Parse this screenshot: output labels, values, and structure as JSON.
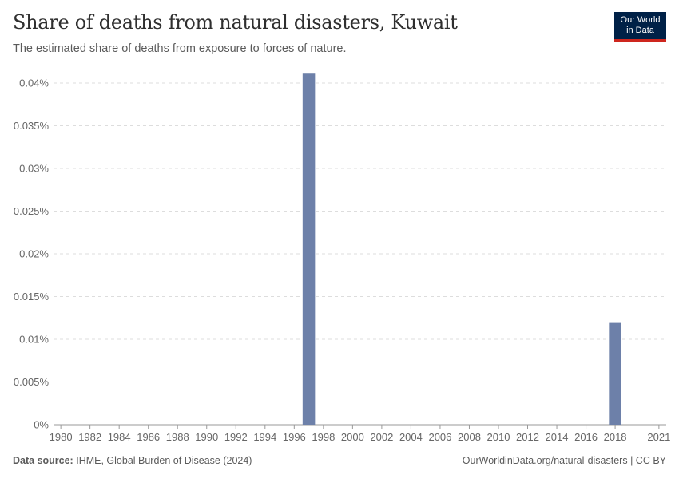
{
  "header": {
    "title": "Share of deaths from natural disasters, Kuwait",
    "subtitle": "The estimated share of deaths from exposure to forces of nature."
  },
  "logo": {
    "line1": "Our World",
    "line2": "in Data"
  },
  "footer": {
    "source_label": "Data source:",
    "source_text": "IHME, Global Burden of Disease (2024)",
    "right_text": "OurWorldinData.org/natural-disasters | CC BY"
  },
  "colors": {
    "bar": "#6d80a9",
    "grid": "#dddddd",
    "axis": "#999999",
    "logo_bg": "#002147",
    "logo_accent": "#ce261e"
  },
  "chart_data": {
    "type": "bar",
    "title": "Share of deaths from natural disasters, Kuwait",
    "xlabel": "",
    "ylabel": "",
    "x_range": [
      1980,
      2021
    ],
    "ylim": [
      0,
      0.04
    ],
    "y_ticks": [
      0,
      0.005,
      0.01,
      0.015,
      0.02,
      0.025,
      0.03,
      0.035,
      0.04
    ],
    "y_tick_labels": [
      "0%",
      "0.005%",
      "0.01%",
      "0.015%",
      "0.02%",
      "0.025%",
      "0.03%",
      "0.035%",
      "0.04%"
    ],
    "x_ticks": [
      1980,
      1982,
      1984,
      1986,
      1988,
      1990,
      1992,
      1994,
      1996,
      1998,
      2000,
      2002,
      2004,
      2006,
      2008,
      2010,
      2012,
      2014,
      2016,
      2018,
      2021
    ],
    "x_tick_labels": [
      "1980",
      "1982",
      "1984",
      "1986",
      "1988",
      "1990",
      "1992",
      "1994",
      "1996",
      "1998",
      "2000",
      "2002",
      "2004",
      "2006",
      "2008",
      "2010",
      "2012",
      "2014",
      "2016",
      "2018",
      "2021"
    ],
    "grid": true,
    "series": [
      {
        "name": "Kuwait",
        "x": [
          1997,
          2018
        ],
        "values": [
          0.0411,
          0.012
        ]
      }
    ]
  }
}
